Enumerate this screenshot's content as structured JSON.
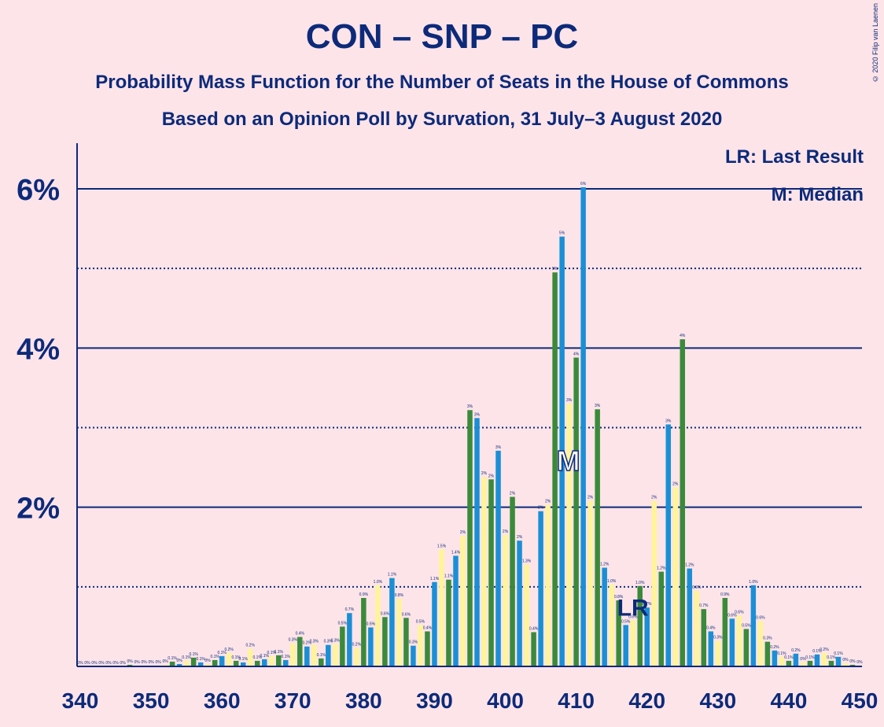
{
  "title": "CON – SNP – PC",
  "subtitle_line1": "Probability Mass Function for the Number of Seats in the House of Commons",
  "subtitle_line2": "Based on an Opinion Poll by Survation, 31 July–3 August 2020",
  "copyright": "© 2020 Filip van Laenen",
  "legend": {
    "last_result": "LR: Last Result",
    "median": "M: Median"
  },
  "markers": {
    "last_result_label": "LR",
    "median_label": "M"
  },
  "colors": {
    "background": "#fde4e8",
    "axis": "#0d2a7a",
    "green": "#3a8a3a",
    "blue": "#1a8fd6",
    "yellow": "#fff49a"
  },
  "chart_data": {
    "type": "bar",
    "x_label": "",
    "y_label": "",
    "xlim": [
      340,
      450
    ],
    "ylim": [
      0,
      6.5
    ],
    "x_ticks": [
      340,
      350,
      360,
      370,
      380,
      390,
      400,
      410,
      420,
      430,
      440,
      450
    ],
    "y_ticks": [
      {
        "value": 2,
        "label": "2%"
      },
      {
        "value": 4,
        "label": "4%"
      },
      {
        "value": 6,
        "label": "6%"
      }
    ],
    "y_dotted_lines": [
      1,
      3,
      5
    ],
    "last_result_seat": 418,
    "median_seat": 409,
    "seats": [
      340,
      341,
      342,
      343,
      344,
      345,
      346,
      347,
      348,
      349,
      350,
      351,
      352,
      353,
      354,
      355,
      356,
      357,
      358,
      359,
      360,
      361,
      362,
      363,
      364,
      365,
      366,
      367,
      368,
      369,
      370,
      371,
      372,
      373,
      374,
      375,
      376,
      377,
      378,
      379,
      380,
      381,
      382,
      383,
      384,
      385,
      386,
      387,
      388,
      389,
      390,
      391,
      392,
      393,
      394,
      395,
      396,
      397,
      398,
      399,
      400,
      401,
      402,
      403,
      404,
      405,
      406,
      407,
      408,
      409,
      410,
      411,
      412,
      413,
      414,
      415,
      416,
      417,
      418,
      419,
      420,
      421,
      422,
      423,
      424,
      425,
      426,
      427,
      428,
      429,
      430,
      431,
      432,
      433,
      434,
      435,
      436,
      437,
      438,
      439,
      440,
      441,
      442,
      443,
      444,
      445,
      446,
      447,
      448,
      449,
      450
    ],
    "values": [
      0,
      0,
      0,
      0,
      0,
      0,
      0,
      0.02,
      0.01,
      0.01,
      0.01,
      0.01,
      0.02,
      0.06,
      0.03,
      0.07,
      0.11,
      0.05,
      0.03,
      0.08,
      0.13,
      0.17,
      0.07,
      0.05,
      0.22,
      0.07,
      0.09,
      0.13,
      0.14,
      0.08,
      0.29,
      0.37,
      0.25,
      0.27,
      0.1,
      0.27,
      0.28,
      0.5,
      0.67,
      0.23,
      0.86,
      0.49,
      1.02,
      0.62,
      1.11,
      0.85,
      0.61,
      0.26,
      0.52,
      0.44,
      1.06,
      1.47,
      1.09,
      1.39,
      1.64,
      3.22,
      3.12,
      2.38,
      2.35,
      2.71,
      1.65,
      2.13,
      1.58,
      1.28,
      0.43,
      1.95,
      2.03,
      4.95,
      5.4,
      3.3,
      3.88,
      6.02,
      2.08,
      3.23,
      1.24,
      1.03,
      0.83,
      0.52,
      0.58,
      1.01,
      0.74,
      2.08,
      1.19,
      3.04,
      2.25,
      4.11,
      1.23,
      0.95,
      0.72,
      0.44,
      0.32,
      0.86,
      0.6,
      0.64,
      0.47,
      1.02,
      0.57,
      0.31,
      0.2,
      0.12,
      0.07,
      0.16,
      0.05,
      0.07,
      0.15,
      0.17,
      0.07,
      0.12,
      0.04,
      0.02,
      0.01
    ],
    "value_labels": [
      "0%",
      "0%",
      "0%",
      "0%",
      "0%",
      "0%",
      "0%",
      "0%",
      "0%",
      "0%",
      "0%",
      "0%",
      "0%",
      "0.1%",
      "0%",
      "0.1%",
      "0.1%",
      "0.1%",
      "0%",
      "0.1%",
      "0.1%",
      "0.2%",
      "0.1%",
      "0.1%",
      "0.2%",
      "0.1%",
      "0.1%",
      "0.1%",
      "0.1%",
      "0.1%",
      "0.3%",
      "0.4%",
      "0.2%",
      "0.3%",
      "0.1%",
      "0.3%",
      "0.3%",
      "0.5%",
      "0.7%",
      "0.2%",
      "0.9%",
      "0.5%",
      "1.0%",
      "0.6%",
      "1.1%",
      "0.8%",
      "0.6%",
      "0.3%",
      "0.5%",
      "0.4%",
      "1.1%",
      "1.5%",
      "1.1%",
      "1.4%",
      "2%",
      "3%",
      "3%",
      "2%",
      "2%",
      "3%",
      "2%",
      "2%",
      "2%",
      "1.3%",
      "0.4%",
      "2%",
      "2%",
      "5%",
      "5%",
      "3%",
      "4%",
      "6%",
      "2%",
      "3%",
      "1.2%",
      "1.0%",
      "0.8%",
      "0.5%",
      "0.6%",
      "1.0%",
      "0.7%",
      "2%",
      "1.2%",
      "3%",
      "2%",
      "4%",
      "1.2%",
      "0.9%",
      "0.7%",
      "0.4%",
      "0.3%",
      "0.9%",
      "0.6%",
      "0.6%",
      "0.5%",
      "1.0%",
      "0.6%",
      "0.3%",
      "0.2%",
      "0.1%",
      "0.1%",
      "0.2%",
      "0%",
      "0.1%",
      "0.1%",
      "0.2%",
      "0.1%",
      "0.1%",
      "0%",
      "0%",
      "0%"
    ],
    "legend_entries": [
      "LR: Last Result",
      "M: Median"
    ]
  }
}
